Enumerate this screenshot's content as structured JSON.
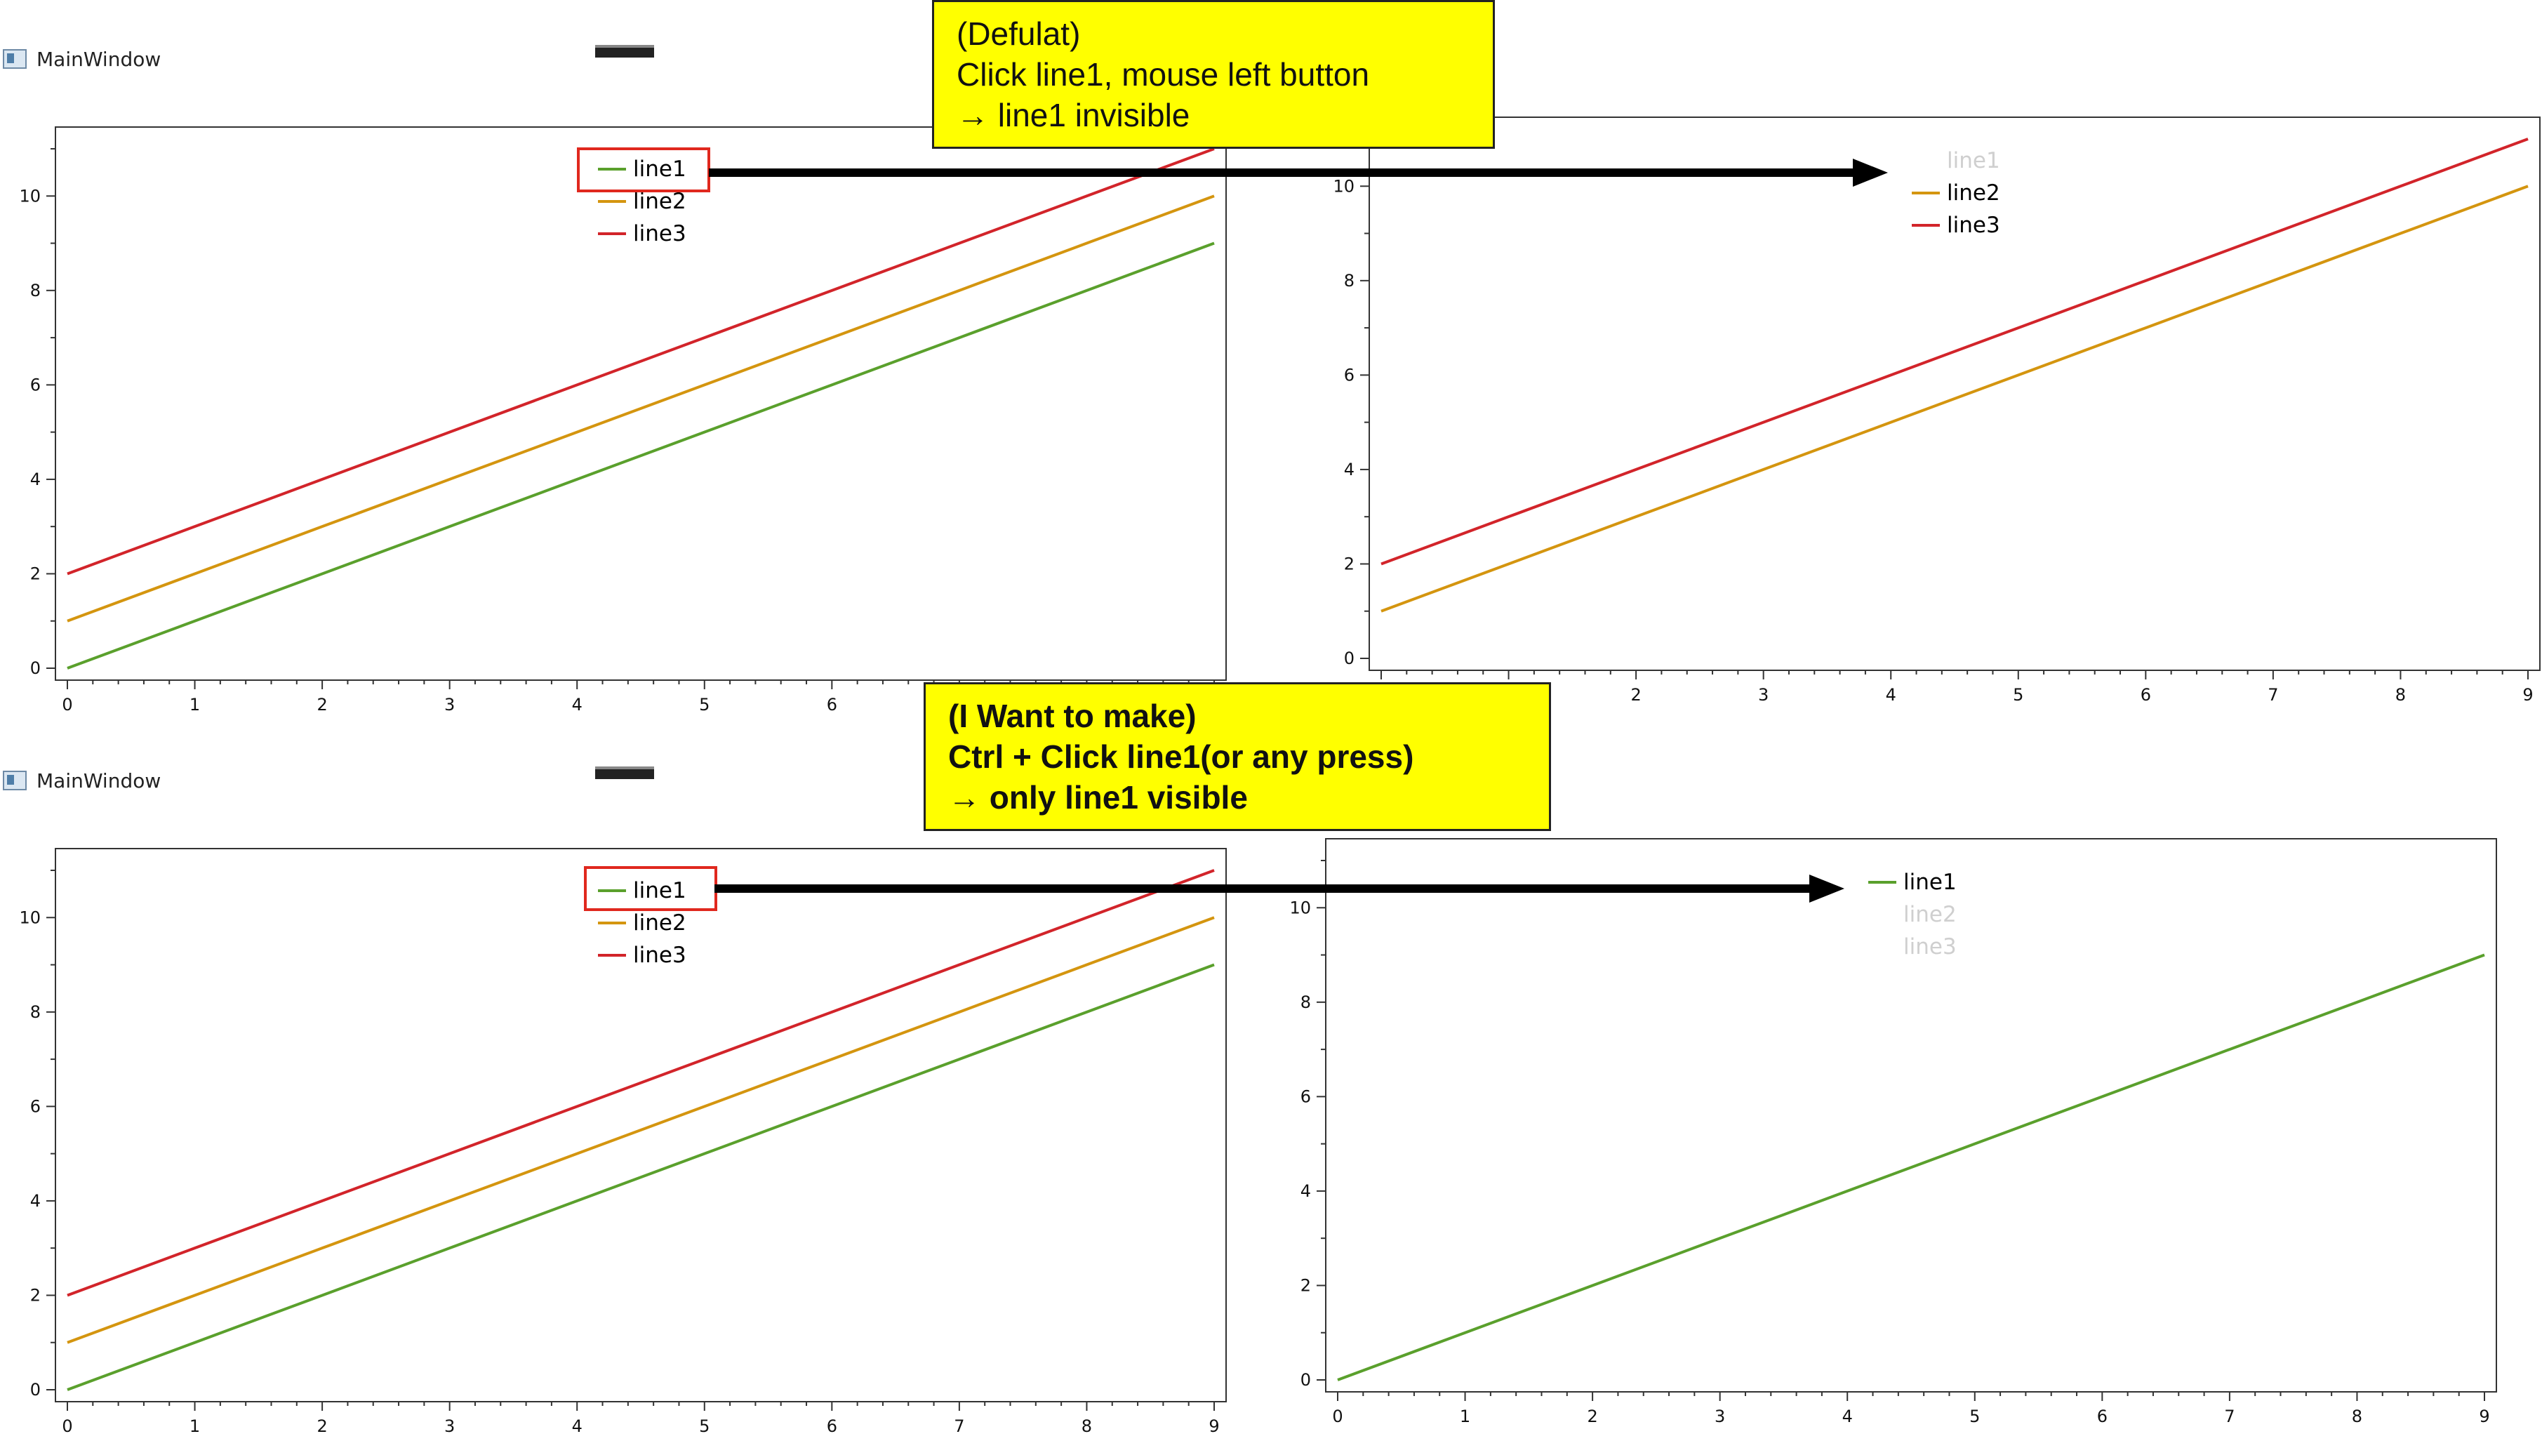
{
  "top_window": {
    "title": "MainWindow"
  },
  "bottom_window": {
    "title": "MainWindow"
  },
  "callout_top": {
    "lines": [
      "(Defulat)",
      "Click line1, mouse left button",
      "→ line1 invisible"
    ]
  },
  "callout_bottom": {
    "lines": [
      "(I Want to make)",
      "Ctrl + Click line1(or any press)",
      "→ only line1 visible"
    ]
  },
  "colors": {
    "line1": "#5aa02c",
    "line2": "#d4950f",
    "line3": "#d2242a",
    "hidden_text": "#cfcfcf",
    "callout_bg": "#ffff00",
    "highlight": "#e0281e"
  },
  "charts": [
    {
      "id": "top-left",
      "legend": [
        {
          "label": "line1",
          "visible": true
        },
        {
          "label": "line2",
          "visible": true
        },
        {
          "label": "line3",
          "visible": true
        }
      ]
    },
    {
      "id": "top-right",
      "legend": [
        {
          "label": "line1",
          "visible": false
        },
        {
          "label": "line2",
          "visible": true
        },
        {
          "label": "line3",
          "visible": true
        }
      ]
    },
    {
      "id": "bottom-left",
      "legend": [
        {
          "label": "line1",
          "visible": true
        },
        {
          "label": "line2",
          "visible": true
        },
        {
          "label": "line3",
          "visible": true
        }
      ]
    },
    {
      "id": "bottom-right",
      "legend": [
        {
          "label": "line1",
          "visible": true
        },
        {
          "label": "line2",
          "visible": false
        },
        {
          "label": "line3",
          "visible": false
        }
      ]
    }
  ],
  "chart_data": [
    {
      "type": "line",
      "x": [
        0,
        1,
        2,
        3,
        4,
        5,
        6,
        7,
        8,
        9
      ],
      "series": [
        {
          "name": "line1",
          "values": [
            0,
            1,
            2,
            3,
            4,
            5,
            6,
            7,
            8,
            9
          ],
          "visible": true
        },
        {
          "name": "line2",
          "values": [
            1,
            2,
            3,
            4,
            5,
            6,
            7,
            8,
            9,
            10
          ],
          "visible": true
        },
        {
          "name": "line3",
          "values": [
            2,
            3,
            4,
            5,
            6,
            7,
            8,
            9,
            10,
            11
          ],
          "visible": true
        }
      ],
      "xlim": [
        0,
        9
      ],
      "ylim": [
        0,
        11
      ],
      "xticks": [
        "0",
        "1",
        "2",
        "3",
        "4",
        "5",
        "6",
        "7",
        "8",
        "9"
      ],
      "yticks": [
        "0",
        "2",
        "4",
        "6",
        "8",
        "10"
      ],
      "legend_position": "top-center"
    },
    {
      "type": "line",
      "x": [
        0,
        1,
        2,
        3,
        4,
        5,
        6,
        7,
        8,
        9
      ],
      "series": [
        {
          "name": "line1",
          "values": [
            0,
            1,
            2,
            3,
            4,
            5,
            6,
            7,
            8,
            9
          ],
          "visible": false
        },
        {
          "name": "line2",
          "values": [
            1,
            2,
            3,
            4,
            5,
            6,
            7,
            8,
            9,
            10
          ],
          "visible": true
        },
        {
          "name": "line3",
          "values": [
            2,
            3,
            4,
            5,
            6,
            7,
            8,
            9,
            10,
            11
          ],
          "visible": true
        }
      ],
      "xlim": [
        0,
        9
      ],
      "ylim": [
        0,
        11
      ],
      "xticks": [
        "0",
        "1",
        "2",
        "3",
        "4",
        "5",
        "6",
        "7",
        "8",
        "9"
      ],
      "yticks": [
        "0",
        "2",
        "4",
        "6",
        "8",
        "10"
      ],
      "legend_position": "top-center"
    },
    {
      "type": "line",
      "x": [
        0,
        1,
        2,
        3,
        4,
        5,
        6,
        7,
        8,
        9
      ],
      "series": [
        {
          "name": "line1",
          "values": [
            0,
            1,
            2,
            3,
            4,
            5,
            6,
            7,
            8,
            9
          ],
          "visible": true
        },
        {
          "name": "line2",
          "values": [
            1,
            2,
            3,
            4,
            5,
            6,
            7,
            8,
            9,
            10
          ],
          "visible": true
        },
        {
          "name": "line3",
          "values": [
            2,
            3,
            4,
            5,
            6,
            7,
            8,
            9,
            10,
            11
          ],
          "visible": true
        }
      ],
      "xlim": [
        0,
        9
      ],
      "ylim": [
        0,
        11
      ],
      "xticks": [
        "0",
        "1",
        "2",
        "3",
        "4",
        "5",
        "6",
        "7",
        "8",
        "9"
      ],
      "yticks": [
        "0",
        "2",
        "4",
        "6",
        "8",
        "10"
      ],
      "legend_position": "top-center"
    },
    {
      "type": "line",
      "x": [
        0,
        1,
        2,
        3,
        4,
        5,
        6,
        7,
        8,
        9
      ],
      "series": [
        {
          "name": "line1",
          "values": [
            0,
            1,
            2,
            3,
            4,
            5,
            6,
            7,
            8,
            9
          ],
          "visible": true
        },
        {
          "name": "line2",
          "values": [
            1,
            2,
            3,
            4,
            5,
            6,
            7,
            8,
            9,
            10
          ],
          "visible": false
        },
        {
          "name": "line3",
          "values": [
            2,
            3,
            4,
            5,
            6,
            7,
            8,
            9,
            10,
            11
          ],
          "visible": false
        }
      ],
      "xlim": [
        0,
        9
      ],
      "ylim": [
        0,
        11
      ],
      "xticks": [
        "0",
        "1",
        "2",
        "3",
        "4",
        "5",
        "6",
        "7",
        "8",
        "9"
      ],
      "yticks": [
        "0",
        "2",
        "4",
        "6",
        "8",
        "10"
      ],
      "legend_position": "top-center"
    }
  ]
}
